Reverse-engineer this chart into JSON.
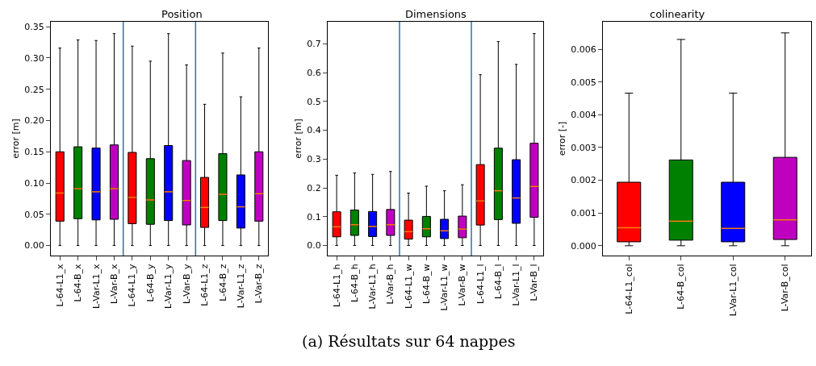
{
  "chart_data": [
    {
      "type": "box",
      "title": "Position",
      "ylabel": "error [m]",
      "categories": [
        "L-64-L1_x",
        "L-64-B_x",
        "L-Var-L1_x",
        "L-Var-B_x",
        "L-64-L1_y",
        "L-64-B_y",
        "L-Var-L1_y",
        "L-Var-B_y",
        "L-64-L1_z",
        "L-64-B_z",
        "L-Var-L1_z",
        "L-Var-B_z"
      ],
      "colors": [
        "#ff0000",
        "#008000",
        "#0000ff",
        "#bf00bf",
        "#ff0000",
        "#008000",
        "#0000ff",
        "#bf00bf",
        "#ff0000",
        "#008000",
        "#0000ff",
        "#bf00bf"
      ],
      "boxes": [
        {
          "low": 0,
          "q1": 0.039,
          "median": 0.084,
          "q3": 0.15,
          "high": 0.316
        },
        {
          "low": 0,
          "q1": 0.043,
          "median": 0.091,
          "q3": 0.158,
          "high": 0.329
        },
        {
          "low": 0,
          "q1": 0.041,
          "median": 0.086,
          "q3": 0.156,
          "high": 0.328
        },
        {
          "low": 0,
          "q1": 0.042,
          "median": 0.091,
          "q3": 0.161,
          "high": 0.339
        },
        {
          "low": 0,
          "q1": 0.035,
          "median": 0.077,
          "q3": 0.149,
          "high": 0.319
        },
        {
          "low": 0,
          "q1": 0.034,
          "median": 0.073,
          "q3": 0.139,
          "high": 0.295
        },
        {
          "low": 0,
          "q1": 0.04,
          "median": 0.086,
          "q3": 0.16,
          "high": 0.339
        },
        {
          "low": 0,
          "q1": 0.033,
          "median": 0.072,
          "q3": 0.136,
          "high": 0.289
        },
        {
          "low": 0,
          "q1": 0.029,
          "median": 0.061,
          "q3": 0.109,
          "high": 0.226
        },
        {
          "low": 0,
          "q1": 0.04,
          "median": 0.082,
          "q3": 0.147,
          "high": 0.308
        },
        {
          "low": 0,
          "q1": 0.028,
          "median": 0.062,
          "q3": 0.113,
          "high": 0.238
        },
        {
          "low": 0,
          "q1": 0.039,
          "median": 0.083,
          "q3": 0.15,
          "high": 0.316
        }
      ],
      "ylim": [
        -0.016,
        0.358
      ],
      "yticks": [
        {
          "value": 0,
          "label": "0.00"
        },
        0.05,
        {
          "value": 0.1,
          "label": "0.10"
        },
        0.15,
        {
          "value": 0.2,
          "label": "0.20"
        },
        0.25,
        {
          "value": 0.3,
          "label": "0.30"
        },
        0.35
      ],
      "annotations": [
        "(a) Résultats sur 64 nappes"
      ]
    },
    {
      "type": "box",
      "title": "Dimensions",
      "ylabel": "error [m]",
      "categories": [
        "L-64-L1_h",
        "L-64-B_h",
        "L-Var-L1_h",
        "L-Var-B_h",
        "L-64-L1_w",
        "L-64-B_w",
        "L-Var-L1_w",
        "L-Var-B_w",
        "L-64-L1_l",
        "L-64-B_l",
        "L-Var-L1_l",
        "L-Var-B_l"
      ],
      "colors": [
        "#ff0000",
        "#008000",
        "#0000ff",
        "#bf00bf",
        "#ff0000",
        "#008000",
        "#0000ff",
        "#bf00bf",
        "#ff0000",
        "#008000",
        "#0000ff",
        "#bf00bf"
      ],
      "boxes": [
        {
          "low": 0,
          "q1": 0.03,
          "median": 0.065,
          "q3": 0.117,
          "high": 0.244
        },
        {
          "low": 0,
          "q1": 0.035,
          "median": 0.072,
          "q3": 0.123,
          "high": 0.252
        },
        {
          "low": 0,
          "q1": 0.031,
          "median": 0.066,
          "q3": 0.118,
          "high": 0.247
        },
        {
          "low": 0,
          "q1": 0.035,
          "median": 0.072,
          "q3": 0.125,
          "high": 0.257
        },
        {
          "low": 0,
          "q1": 0.022,
          "median": 0.048,
          "q3": 0.088,
          "high": 0.182
        },
        {
          "low": 0,
          "q1": 0.03,
          "median": 0.058,
          "q3": 0.101,
          "high": 0.206
        },
        {
          "low": 0,
          "q1": 0.024,
          "median": 0.051,
          "q3": 0.091,
          "high": 0.19
        },
        {
          "low": 0,
          "q1": 0.027,
          "median": 0.057,
          "q3": 0.102,
          "high": 0.211
        },
        {
          "low": 0,
          "q1": 0.071,
          "median": 0.155,
          "q3": 0.281,
          "high": 0.593
        },
        {
          "low": 0,
          "q1": 0.09,
          "median": 0.19,
          "q3": 0.338,
          "high": 0.708
        },
        {
          "low": 0,
          "q1": 0.077,
          "median": 0.165,
          "q3": 0.298,
          "high": 0.629
        },
        {
          "low": 0,
          "q1": 0.098,
          "median": 0.205,
          "q3": 0.355,
          "high": 0.736
        }
      ],
      "ylim": [
        -0.035,
        0.777
      ],
      "yticks": [
        {
          "value": 0,
          "label": "0.0"
        },
        0.1,
        0.2,
        0.3,
        0.4,
        0.5,
        0.6,
        0.7
      ]
    },
    {
      "type": "box",
      "title": "colinearity",
      "ylabel": "error [-]",
      "categories": [
        "L-64-L1_col",
        "L-64-B_col",
        "L-Var-L1_col",
        "L-Var-B_col"
      ],
      "colors": [
        "#ff0000",
        "#008000",
        "#0000ff",
        "#bf00bf"
      ],
      "boxes": [
        {
          "low": 0,
          "q1": 0.00012,
          "median": 0.00055,
          "q3": 0.00194,
          "high": 0.00466
        },
        {
          "low": 0,
          "q1": 0.00017,
          "median": 0.00075,
          "q3": 0.00262,
          "high": 0.0063
        },
        {
          "low": 0,
          "q1": 0.00012,
          "median": 0.00053,
          "q3": 0.00194,
          "high": 0.00466
        },
        {
          "low": 0,
          "q1": 0.00019,
          "median": 0.00079,
          "q3": 0.0027,
          "high": 0.0065
        }
      ],
      "ylim": [
        -0.0003,
        0.00684
      ],
      "yticks": [
        {
          "value": 0,
          "label": "0.000"
        },
        0.001,
        0.002,
        0.003,
        0.004,
        0.005,
        0.006
      ]
    }
  ]
}
